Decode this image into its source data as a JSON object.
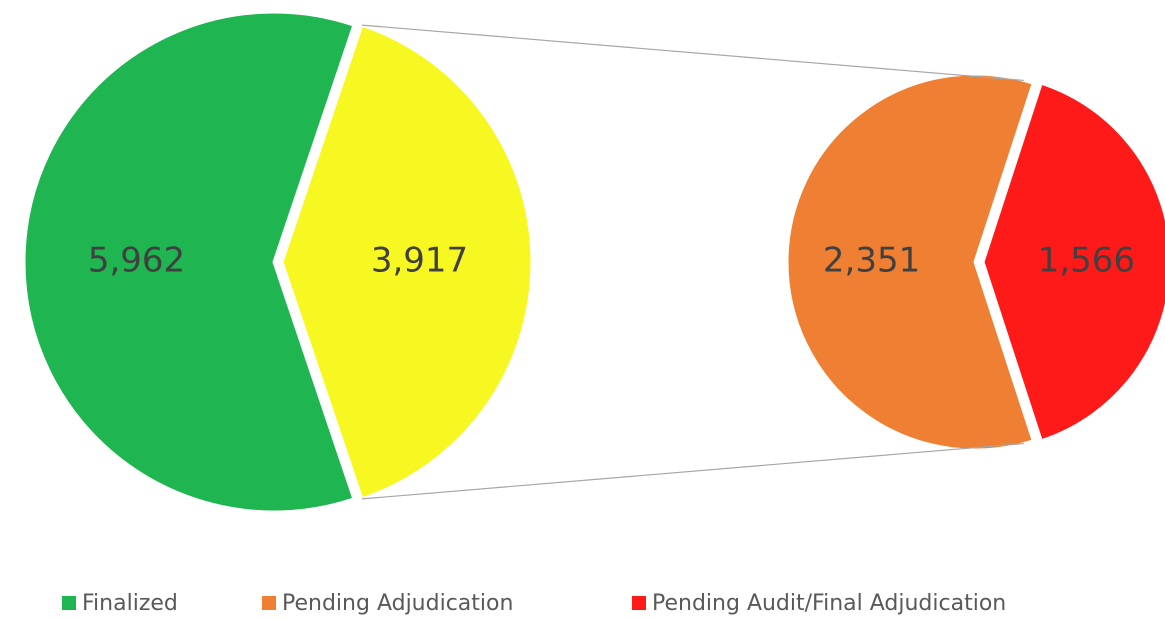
{
  "chart_data": {
    "type": "pie-of-pie",
    "main": {
      "categories": [
        "Finalized",
        null
      ],
      "values": [
        5962,
        3917
      ],
      "value_labels": [
        "5,962",
        "3,917"
      ],
      "colors": [
        "#1fb550",
        "#f7f722"
      ]
    },
    "secondary": {
      "categories": [
        "Pending Adjudication",
        "Pending Audit/Final Adjudication"
      ],
      "values": [
        2351,
        1566
      ],
      "value_labels": [
        "2,351",
        "1,566"
      ],
      "colors": [
        "#ee7f33",
        "#ff1a1a"
      ]
    }
  }
}
